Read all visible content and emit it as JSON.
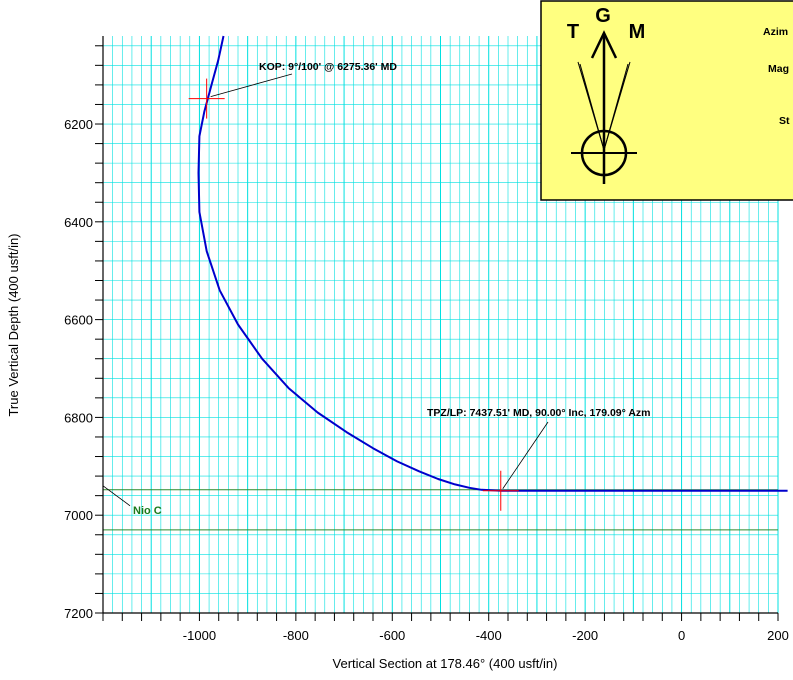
{
  "chart_data": {
    "type": "line",
    "xlabel": "Vertical Section at 178.46° (400 usft/in)",
    "ylabel": "True Vertical Depth (400 usft/in)",
    "xlim": [
      -1200,
      200
    ],
    "ylim": [
      7200,
      6020
    ],
    "x_ticks": [
      -1000,
      -800,
      -600,
      -400,
      -200,
      0,
      200
    ],
    "y_ticks": [
      6200,
      6400,
      6600,
      6800,
      7000,
      7200
    ],
    "grid": true,
    "series": [
      {
        "color": "#0000cc",
        "x": [
          -950,
          -961,
          -975,
          -990,
          -1000,
          -1002,
          -1000,
          -985,
          -958,
          -920,
          -870,
          -815,
          -755,
          -695,
          -640,
          -590,
          -545,
          -505,
          -470,
          -440,
          -415,
          -395,
          -375,
          220
        ],
        "y": [
          6020,
          6070,
          6120,
          6175,
          6225,
          6300,
          6380,
          6460,
          6540,
          6610,
          6680,
          6740,
          6790,
          6830,
          6863,
          6890,
          6910,
          6926,
          6937,
          6944,
          6948,
          6949,
          6950,
          6950
        ]
      }
    ],
    "markers": [
      {
        "x": -985,
        "y": 6148
      },
      {
        "x": -375,
        "y": 6950
      }
    ],
    "formations": [
      {
        "label": "Nio C",
        "y": 6948
      },
      {
        "label": "",
        "y": 7030
      }
    ],
    "annotations": [
      {
        "text": "KOP: 9°/100' @ 6275.36' MD",
        "x": -985,
        "y": 6148
      },
      {
        "text": "TPZ/LP:  7437.51' MD, 90.00° Inc, 179.09° Azm",
        "x": -375,
        "y": 6950
      }
    ]
  },
  "north_legend": {
    "true_label": "T",
    "grid_label": "G",
    "magnetic_label": "M",
    "text_lines": [
      "Azim",
      "Mag",
      "St"
    ],
    "background": "#ffff80"
  },
  "colors": {
    "grid": "#00e0e0",
    "well_path": "#0000cc",
    "marker": "#ff0000",
    "formation": "#2a8a2a"
  }
}
